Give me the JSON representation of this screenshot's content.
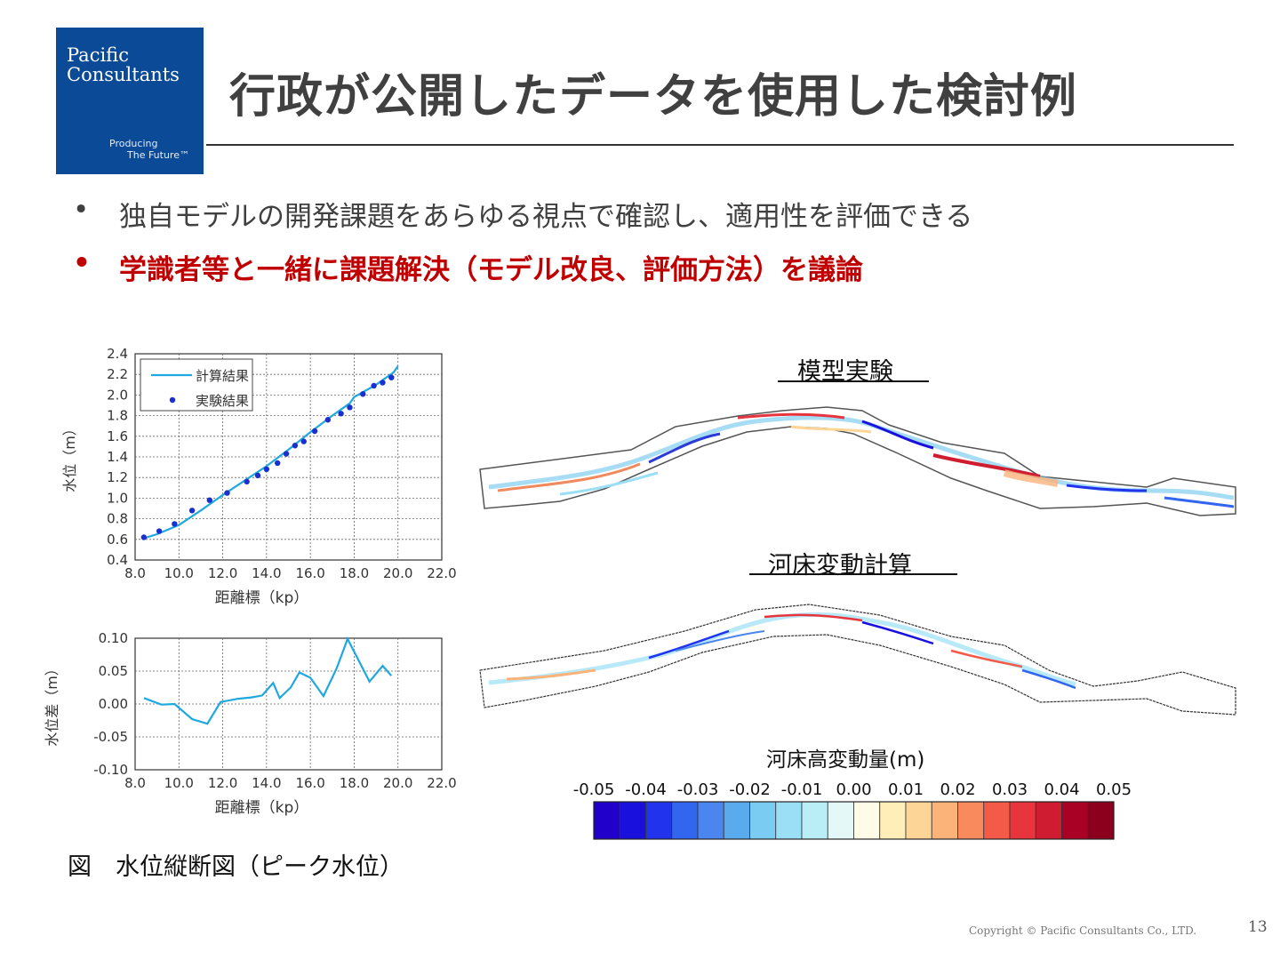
{
  "logo": {
    "line1": "Pacific",
    "line2": "Consultants",
    "tag1": "Producing",
    "tag2": "The Future™"
  },
  "title": "行政が公開したデータを使用した検討例",
  "bullets": [
    {
      "marker": "•",
      "text": "独自モデルの開発課題をあらゆる視点で確認し、適用性を評価できる"
    },
    {
      "marker": "•",
      "text": "学識者等と一緒に課題解決（モデル改良、評価方法）を議論"
    }
  ],
  "colors": {
    "title": "#404040",
    "highlight": "#c00000",
    "logo_bg": "#0a4a97",
    "series_line": "#1fa8e0",
    "series_points": "#1a2fd0"
  },
  "chart_data": [
    {
      "type": "line",
      "xlabel": "距離標（kp）",
      "ylabel": "水位（m）",
      "xlim": [
        8.0,
        22.0
      ],
      "ylim": [
        0.4,
        2.4
      ],
      "xticks": [
        "8.0",
        "10.0",
        "12.0",
        "14.0",
        "16.0",
        "18.0",
        "20.0",
        "22.0"
      ],
      "yticks": [
        "0.4",
        "0.6",
        "0.8",
        "1.0",
        "1.2",
        "1.4",
        "1.6",
        "1.8",
        "2.0",
        "2.2",
        "2.4"
      ],
      "legend": "top-left",
      "grid": true,
      "series": [
        {
          "name": "計算結果",
          "style": "line",
          "x": [
            8.4,
            9.0,
            10.0,
            11.0,
            12.0,
            13.0,
            14.0,
            15.0,
            16.0,
            17.0,
            17.8,
            18.0,
            19.0,
            19.8,
            20.0
          ],
          "y": [
            0.61,
            0.65,
            0.74,
            0.88,
            1.03,
            1.17,
            1.31,
            1.47,
            1.64,
            1.8,
            1.92,
            1.98,
            2.1,
            2.22,
            2.28
          ]
        },
        {
          "name": "実験結果",
          "style": "points",
          "x": [
            8.4,
            9.1,
            9.8,
            10.6,
            11.4,
            12.2,
            13.1,
            13.6,
            14.0,
            14.5,
            14.9,
            15.3,
            15.7,
            16.2,
            16.8,
            17.4,
            17.8,
            18.4,
            18.9,
            19.3,
            19.7
          ],
          "y": [
            0.62,
            0.68,
            0.75,
            0.88,
            0.98,
            1.05,
            1.16,
            1.22,
            1.28,
            1.34,
            1.43,
            1.51,
            1.55,
            1.65,
            1.76,
            1.82,
            1.88,
            2.01,
            2.09,
            2.12,
            2.17
          ]
        }
      ]
    },
    {
      "type": "line",
      "xlabel": "距離標（kp）",
      "ylabel": "水位差（m）",
      "xlim": [
        8.0,
        22.0
      ],
      "ylim": [
        -0.1,
        0.1
      ],
      "xticks": [
        "8.0",
        "10.0",
        "12.0",
        "14.0",
        "16.0",
        "18.0",
        "20.0",
        "22.0"
      ],
      "yticks": [
        "-0.10",
        "-0.05",
        "0.00",
        "0.05",
        "0.10"
      ],
      "grid": true,
      "series": [
        {
          "x": [
            8.4,
            9.2,
            9.8,
            10.6,
            11.3,
            11.9,
            12.7,
            13.3,
            13.8,
            14.3,
            14.6,
            15.1,
            15.5,
            16.0,
            16.6,
            17.2,
            17.7,
            18.7,
            19.3,
            19.7
          ],
          "y": [
            0.009,
            -0.001,
            0.0,
            -0.023,
            -0.03,
            0.003,
            0.008,
            0.01,
            0.013,
            0.032,
            0.009,
            0.025,
            0.048,
            0.04,
            0.012,
            0.054,
            0.099,
            0.034,
            0.058,
            0.043
          ]
        }
      ]
    }
  ],
  "caption": "図　水位縦断図（ピーク水位）",
  "maps": {
    "top_label": "模型実験",
    "bottom_label": "河床変動計算"
  },
  "colorbar": {
    "title": "河床高変動量(m)",
    "ticks": [
      "-0.05",
      "-0.04",
      "-0.03",
      "-0.02",
      "-0.01",
      "0.00",
      "0.01",
      "0.02",
      "0.03",
      "0.04",
      "0.05"
    ],
    "colors": [
      "#2200cc",
      "#1a10dd",
      "#2233ee",
      "#3366ee",
      "#4a86ee",
      "#5aaaee",
      "#7accf2",
      "#9adff5",
      "#b9eef7",
      "#e4f8f8",
      "#fffbe6",
      "#ffeeb8",
      "#fdd597",
      "#fbb37a",
      "#f88a5e",
      "#f35a48",
      "#e8343c",
      "#cf1c30",
      "#a90025",
      "#8c001e"
    ]
  },
  "footer": {
    "copyright": "Copyright © Pacific Consultants Co., LTD.",
    "page": "13"
  }
}
